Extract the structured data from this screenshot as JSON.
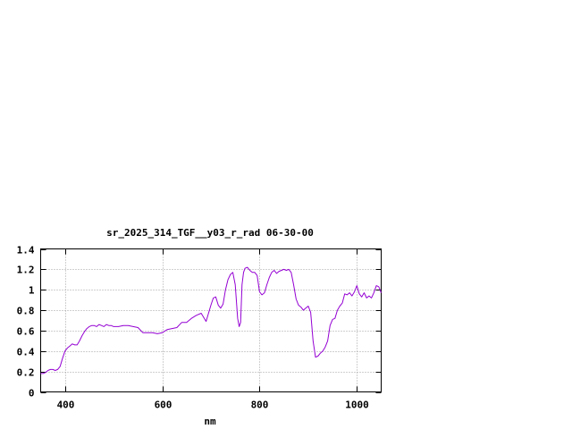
{
  "chart_data": {
    "type": "line",
    "title": "sr_2025_314_TGF__y03_r_rad 06-30-00",
    "xlabel": "nm",
    "ylabel": "",
    "xlim": [
      350,
      1050
    ],
    "ylim": [
      0,
      1.4
    ],
    "xticks": [
      400,
      600,
      800,
      1000
    ],
    "xtick_labels": [
      "400",
      "600",
      "800",
      "1000"
    ],
    "yticks": [
      0,
      0.2,
      0.4,
      0.6,
      0.8,
      1.0,
      1.2,
      1.4
    ],
    "ytick_labels": [
      "0",
      "0.2",
      "0.4",
      "0.6",
      "0.8",
      "1",
      "1.2",
      "1.4"
    ],
    "grid": true,
    "legend": "none",
    "line_color": "#9400d3",
    "series": [
      {
        "x": [
          350,
          355,
          360,
          365,
          370,
          375,
          380,
          385,
          390,
          395,
          400,
          405,
          410,
          415,
          420,
          425,
          430,
          435,
          440,
          445,
          450,
          455,
          460,
          465,
          470,
          475,
          480,
          485,
          490,
          495,
          500,
          510,
          520,
          530,
          540,
          550,
          560,
          570,
          580,
          590,
          600,
          610,
          620,
          630,
          640,
          650,
          660,
          670,
          680,
          690,
          700,
          705,
          710,
          715,
          720,
          725,
          730,
          735,
          740,
          745,
          750,
          755,
          758,
          761,
          764,
          767,
          770,
          775,
          780,
          785,
          790,
          795,
          800,
          805,
          810,
          815,
          820,
          825,
          830,
          835,
          840,
          845,
          850,
          855,
          860,
          865,
          870,
          875,
          880,
          885,
          890,
          895,
          900,
          905,
          910,
          915,
          920,
          925,
          930,
          935,
          940,
          945,
          950,
          955,
          960,
          965,
          970,
          975,
          980,
          985,
          990,
          995,
          1000,
          1005,
          1010,
          1015,
          1020,
          1025,
          1030,
          1035,
          1040,
          1045,
          1050
        ],
        "y": [
          0.18,
          0.18,
          0.19,
          0.21,
          0.22,
          0.22,
          0.21,
          0.22,
          0.25,
          0.33,
          0.4,
          0.43,
          0.45,
          0.47,
          0.46,
          0.46,
          0.5,
          0.55,
          0.59,
          0.62,
          0.64,
          0.65,
          0.65,
          0.64,
          0.66,
          0.65,
          0.64,
          0.66,
          0.65,
          0.65,
          0.64,
          0.64,
          0.65,
          0.65,
          0.64,
          0.63,
          0.58,
          0.58,
          0.58,
          0.57,
          0.58,
          0.61,
          0.62,
          0.63,
          0.68,
          0.68,
          0.72,
          0.75,
          0.77,
          0.69,
          0.85,
          0.92,
          0.93,
          0.85,
          0.82,
          0.86,
          1.0,
          1.1,
          1.15,
          1.17,
          1.05,
          0.72,
          0.64,
          0.68,
          1.05,
          1.17,
          1.21,
          1.22,
          1.19,
          1.17,
          1.17,
          1.14,
          0.98,
          0.95,
          0.97,
          1.05,
          1.12,
          1.17,
          1.19,
          1.16,
          1.18,
          1.19,
          1.2,
          1.19,
          1.2,
          1.17,
          1.05,
          0.91,
          0.85,
          0.83,
          0.8,
          0.82,
          0.84,
          0.78,
          0.5,
          0.34,
          0.35,
          0.38,
          0.4,
          0.44,
          0.5,
          0.65,
          0.71,
          0.72,
          0.8,
          0.84,
          0.87,
          0.96,
          0.95,
          0.97,
          0.94,
          0.98,
          1.04,
          0.96,
          0.93,
          0.97,
          0.92,
          0.94,
          0.92,
          0.97,
          1.04,
          1.03,
          0.97
        ]
      }
    ]
  }
}
